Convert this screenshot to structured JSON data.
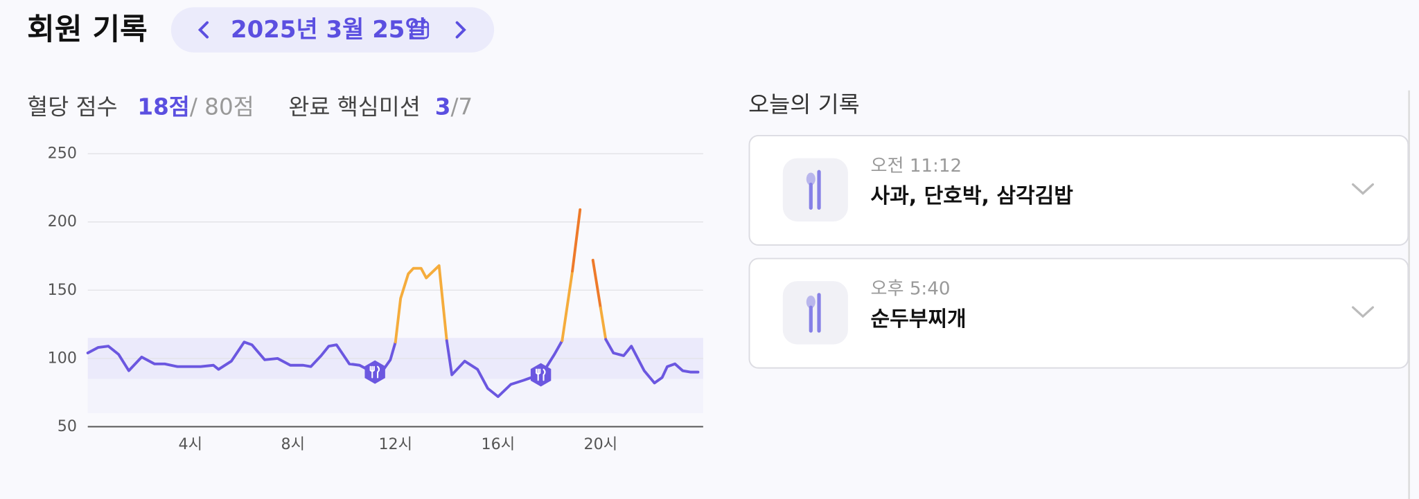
{
  "header": {
    "title": "회원 기록",
    "date": "2025년 3월 25일"
  },
  "summary": {
    "score_label": "혈당 점수",
    "score": "18점",
    "score_total": "/ 80점",
    "mission_label": "완료 핵심미션",
    "mission_done": "3",
    "mission_total": "/7"
  },
  "chart_data": {
    "type": "line",
    "x": [
      0,
      0.4,
      0.8,
      1.2,
      1.6,
      2.1,
      2.6,
      3.0,
      3.5,
      4.0,
      4.4,
      4.9,
      5.1,
      5.6,
      6.1,
      6.4,
      6.9,
      7.4,
      7.9,
      8.4,
      8.7,
      9.1,
      9.4,
      9.7,
      10.2,
      10.6,
      11.0,
      11.5,
      11.8,
      12.0,
      12.2,
      12.5,
      12.7,
      13.0,
      13.2,
      13.7,
      14.0,
      14.2,
      14.7,
      15.2,
      15.6,
      16.0,
      16.5,
      17.0,
      17.6,
      17.9,
      18.2,
      18.5,
      18.9,
      19.2,
      19.45,
      19.7,
      20.0,
      20.2,
      20.5,
      20.9,
      21.2,
      21.7,
      22.1,
      22.4,
      22.6,
      22.9,
      23.2,
      23.5,
      23.8
    ],
    "series": [
      {
        "color": "#6b57e0",
        "values": [
          104,
          108,
          109,
          103,
          91,
          101,
          96,
          96,
          94,
          94,
          94,
          95,
          92,
          98,
          112,
          110,
          99,
          100,
          95,
          95,
          94,
          102,
          109,
          110,
          96,
          95,
          91,
          91,
          99,
          112,
          144,
          162,
          166,
          166,
          159,
          168,
          113,
          88,
          98,
          92,
          78,
          72,
          81,
          84,
          88,
          94,
          103,
          113,
          164,
          209,
          null,
          172,
          137,
          114,
          104,
          102,
          109,
          91,
          82,
          86,
          94,
          96,
          91,
          90,
          90
        ]
      }
    ],
    "thresholds": [
      {
        "above": 115,
        "color": "#f5ac3c"
      },
      {
        "above": 170,
        "color": "#ee7a2a"
      }
    ],
    "bands": [
      {
        "from": 85,
        "to": 115,
        "color": "#ebeafb"
      },
      {
        "from": 60,
        "to": 85,
        "color": "#f3f3fc"
      }
    ],
    "meal_markers": [
      {
        "x": 11.2,
        "y": 90
      },
      {
        "x": 17.67,
        "y": 88
      }
    ],
    "xlim": [
      0,
      24
    ],
    "ylim": [
      50,
      250
    ],
    "xticks": [
      {
        "value": 4,
        "label": "4시"
      },
      {
        "value": 8,
        "label": "8시"
      },
      {
        "value": 12,
        "label": "12시"
      },
      {
        "value": 16,
        "label": "16시"
      },
      {
        "value": 20,
        "label": "20시"
      }
    ],
    "yticks": [
      50,
      100,
      150,
      200,
      250
    ],
    "grid": true
  },
  "records": {
    "title": "오늘의 기록",
    "items": [
      {
        "time": "오전 11:12",
        "food": "사과, 단호박, 삼각김밥"
      },
      {
        "time": "오후 5:40",
        "food": "순두부찌개"
      }
    ]
  }
}
